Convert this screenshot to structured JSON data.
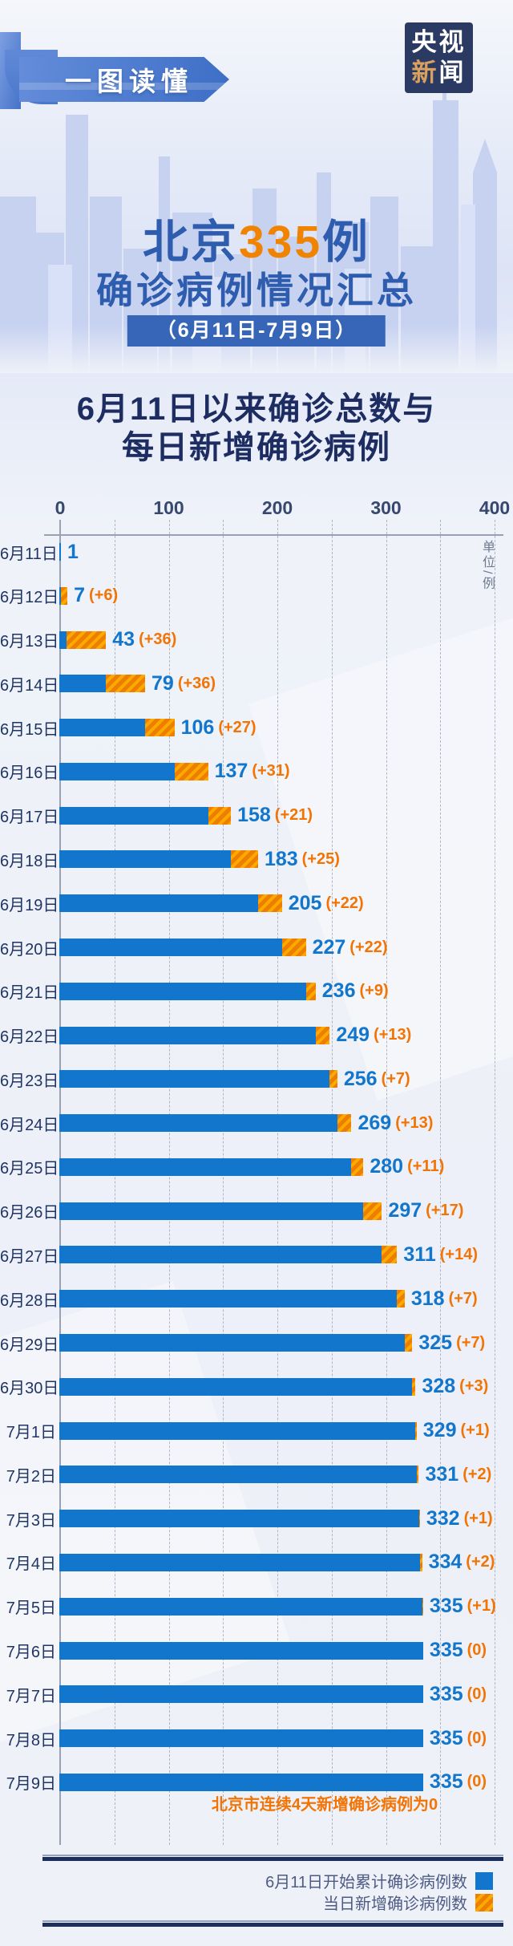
{
  "logo": {
    "line1": "央视",
    "line2_colored": "新",
    "line2_rest": "闻"
  },
  "ribbon": {
    "label": "一图读懂"
  },
  "title": {
    "prefix": "北京",
    "highlight": "335",
    "suffix": "例",
    "line2": "确诊病例情况汇总",
    "date_range": "（6月11日-7月9日）"
  },
  "subtitle": {
    "line1": "6月11日以来确诊总数与",
    "line2": "每日新增确诊病例"
  },
  "axis": {
    "unit_label": "单位/例"
  },
  "note": "北京市连续4天新增确诊病例为0",
  "legend": [
    {
      "label": "6月11日开始累计确诊病例数",
      "swatch": "cumulative"
    },
    {
      "label": "当日新增确诊病例数",
      "swatch": "new"
    }
  ],
  "colors": {
    "bar_blue": "#1176cc",
    "bar_orange": "#f08300",
    "title_blue": "#2e5cae",
    "highlight_orange": "#f08300",
    "navy_text": "#1d2d62",
    "note_orange": "#f27405",
    "band_blue": "#3766b8",
    "logo_navy": "#2b3a63"
  },
  "chart_data": {
    "type": "bar",
    "orientation": "horizontal",
    "title": "6月11日以来确诊总数与每日新增确诊病例",
    "unit": "例",
    "xlim": [
      0,
      400
    ],
    "ticks": [
      0,
      100,
      200,
      300,
      400
    ],
    "grid_step": 50,
    "grid": "dashed-vertical",
    "legend_position": "bottom-right",
    "categories": [
      "6月11日",
      "6月12日",
      "6月13日",
      "6月14日",
      "6月15日",
      "6月16日",
      "6月17日",
      "6月18日",
      "6月19日",
      "6月20日",
      "6月21日",
      "6月22日",
      "6月23日",
      "6月24日",
      "6月25日",
      "6月26日",
      "6月27日",
      "6月28日",
      "6月29日",
      "6月30日",
      "7月1日",
      "7月2日",
      "7月3日",
      "7月4日",
      "7月5日",
      "7月6日",
      "7月7日",
      "7月8日",
      "7月9日"
    ],
    "series": [
      {
        "name": "6月11日开始累计确诊病例数",
        "values": [
          1,
          7,
          43,
          79,
          106,
          137,
          158,
          183,
          205,
          227,
          236,
          249,
          256,
          269,
          280,
          297,
          311,
          318,
          325,
          328,
          329,
          331,
          332,
          334,
          335,
          335,
          335,
          335,
          335
        ]
      },
      {
        "name": "当日新增确诊病例数",
        "values": [
          null,
          6,
          36,
          36,
          27,
          31,
          21,
          25,
          22,
          22,
          9,
          13,
          7,
          13,
          11,
          17,
          14,
          7,
          7,
          3,
          1,
          2,
          1,
          2,
          1,
          0,
          0,
          0,
          0
        ]
      }
    ]
  }
}
